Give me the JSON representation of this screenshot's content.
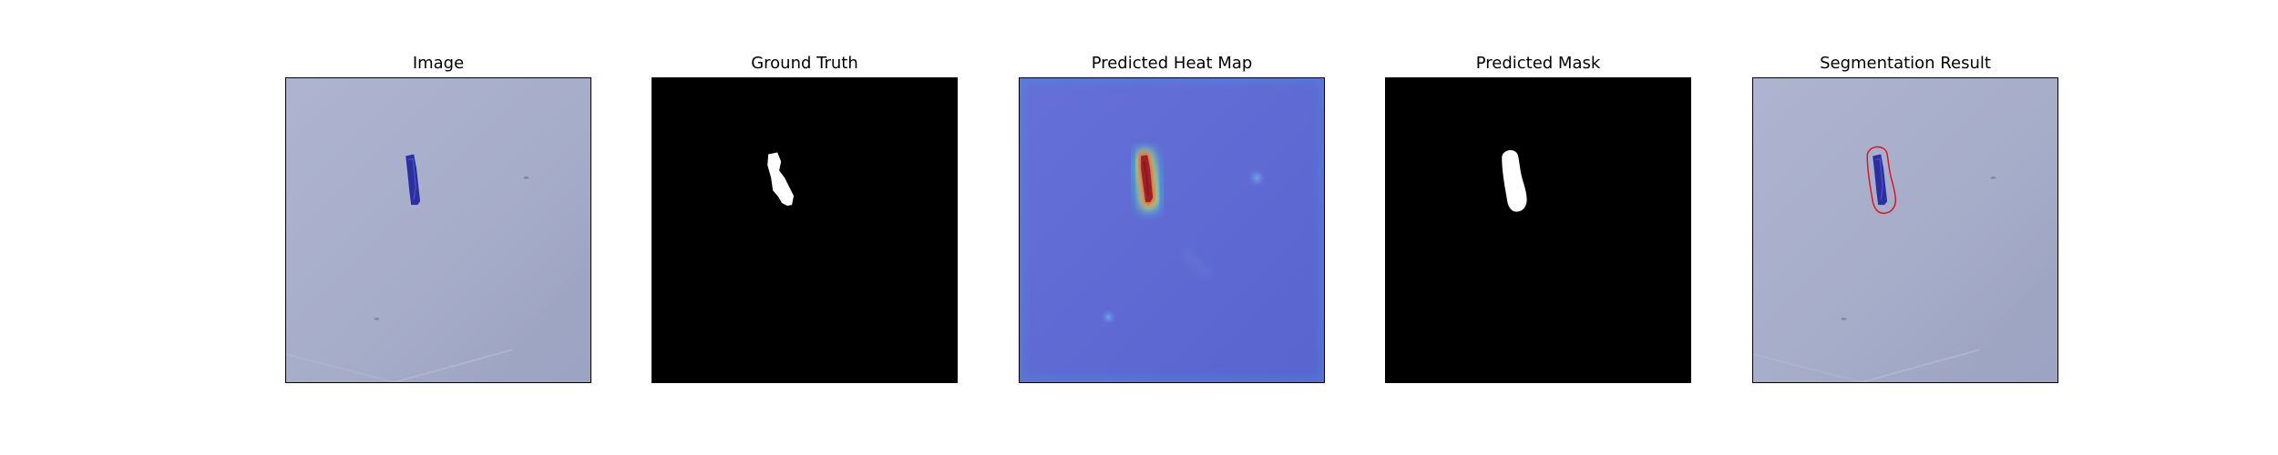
{
  "panels": [
    {
      "title": "Image"
    },
    {
      "title": "Ground Truth"
    },
    {
      "title": "Predicted Heat Map"
    },
    {
      "title": "Predicted Mask"
    },
    {
      "title": "Segmentation Result"
    }
  ],
  "colors": {
    "surface": "#a4abc8",
    "object": "#2b2fa0",
    "mask_bg": "#000000",
    "mask_fg": "#ffffff",
    "heat_low": "#5b66d6",
    "heat_hot": "#9e1e2a",
    "contour": "#e0141e"
  }
}
